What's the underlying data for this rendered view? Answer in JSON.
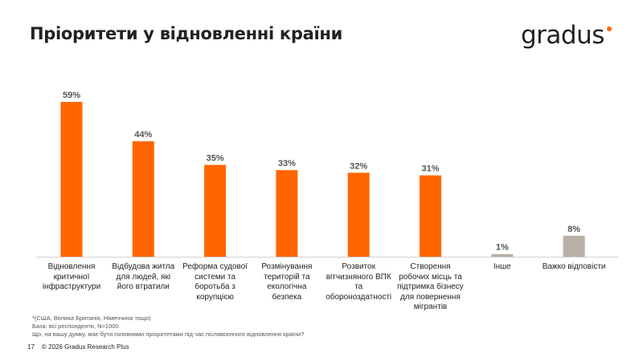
{
  "header": {
    "title": "Пріоритети у відновленні країни",
    "logo_text": "gradus"
  },
  "colors": {
    "accent": "#ff6600",
    "neutral": "#b8b0a6",
    "axis": "#d0d0d0"
  },
  "chart_data": {
    "type": "bar",
    "categories": [
      "Відновлення\nкритичної\nінфраструктури",
      "Відбудова житла\nдля людей, які\nйого втратили",
      "Реформа судової\nсистеми та\nборотьба з\nкорупцією",
      "Розмінування\nтериторій та\nекологічна безпека",
      "Розвиток\nвітчизняного ВПК\nта\nобороноздатності",
      "Створення\nробочих місць та\nпідтримка бізнесу\nдля повернення\nмігрантів",
      "Інше",
      "Важко відповісти"
    ],
    "values": [
      59,
      44,
      35,
      33,
      32,
      31,
      1,
      8
    ],
    "data_labels": [
      "59%",
      "44%",
      "35%",
      "33%",
      "32%",
      "31%",
      "1%",
      "8%"
    ],
    "bar_colors": [
      "#ff6600",
      "#ff6600",
      "#ff6600",
      "#ff6600",
      "#ff6600",
      "#ff6600",
      "#b8b0a6",
      "#b8b0a6"
    ],
    "ylim": [
      0,
      60
    ],
    "grid": false,
    "legend": "none"
  },
  "footer": {
    "note": "*(США, Велика Британія, Німеччина тощо)",
    "base": "База: всі респонденти, N=1000",
    "question": "Що, на вашу думку, має бути головними пріоритетами під час післявоєнного відновлення країни?",
    "page": "17",
    "copyright": "© 2026 Gradus Research Plus"
  }
}
